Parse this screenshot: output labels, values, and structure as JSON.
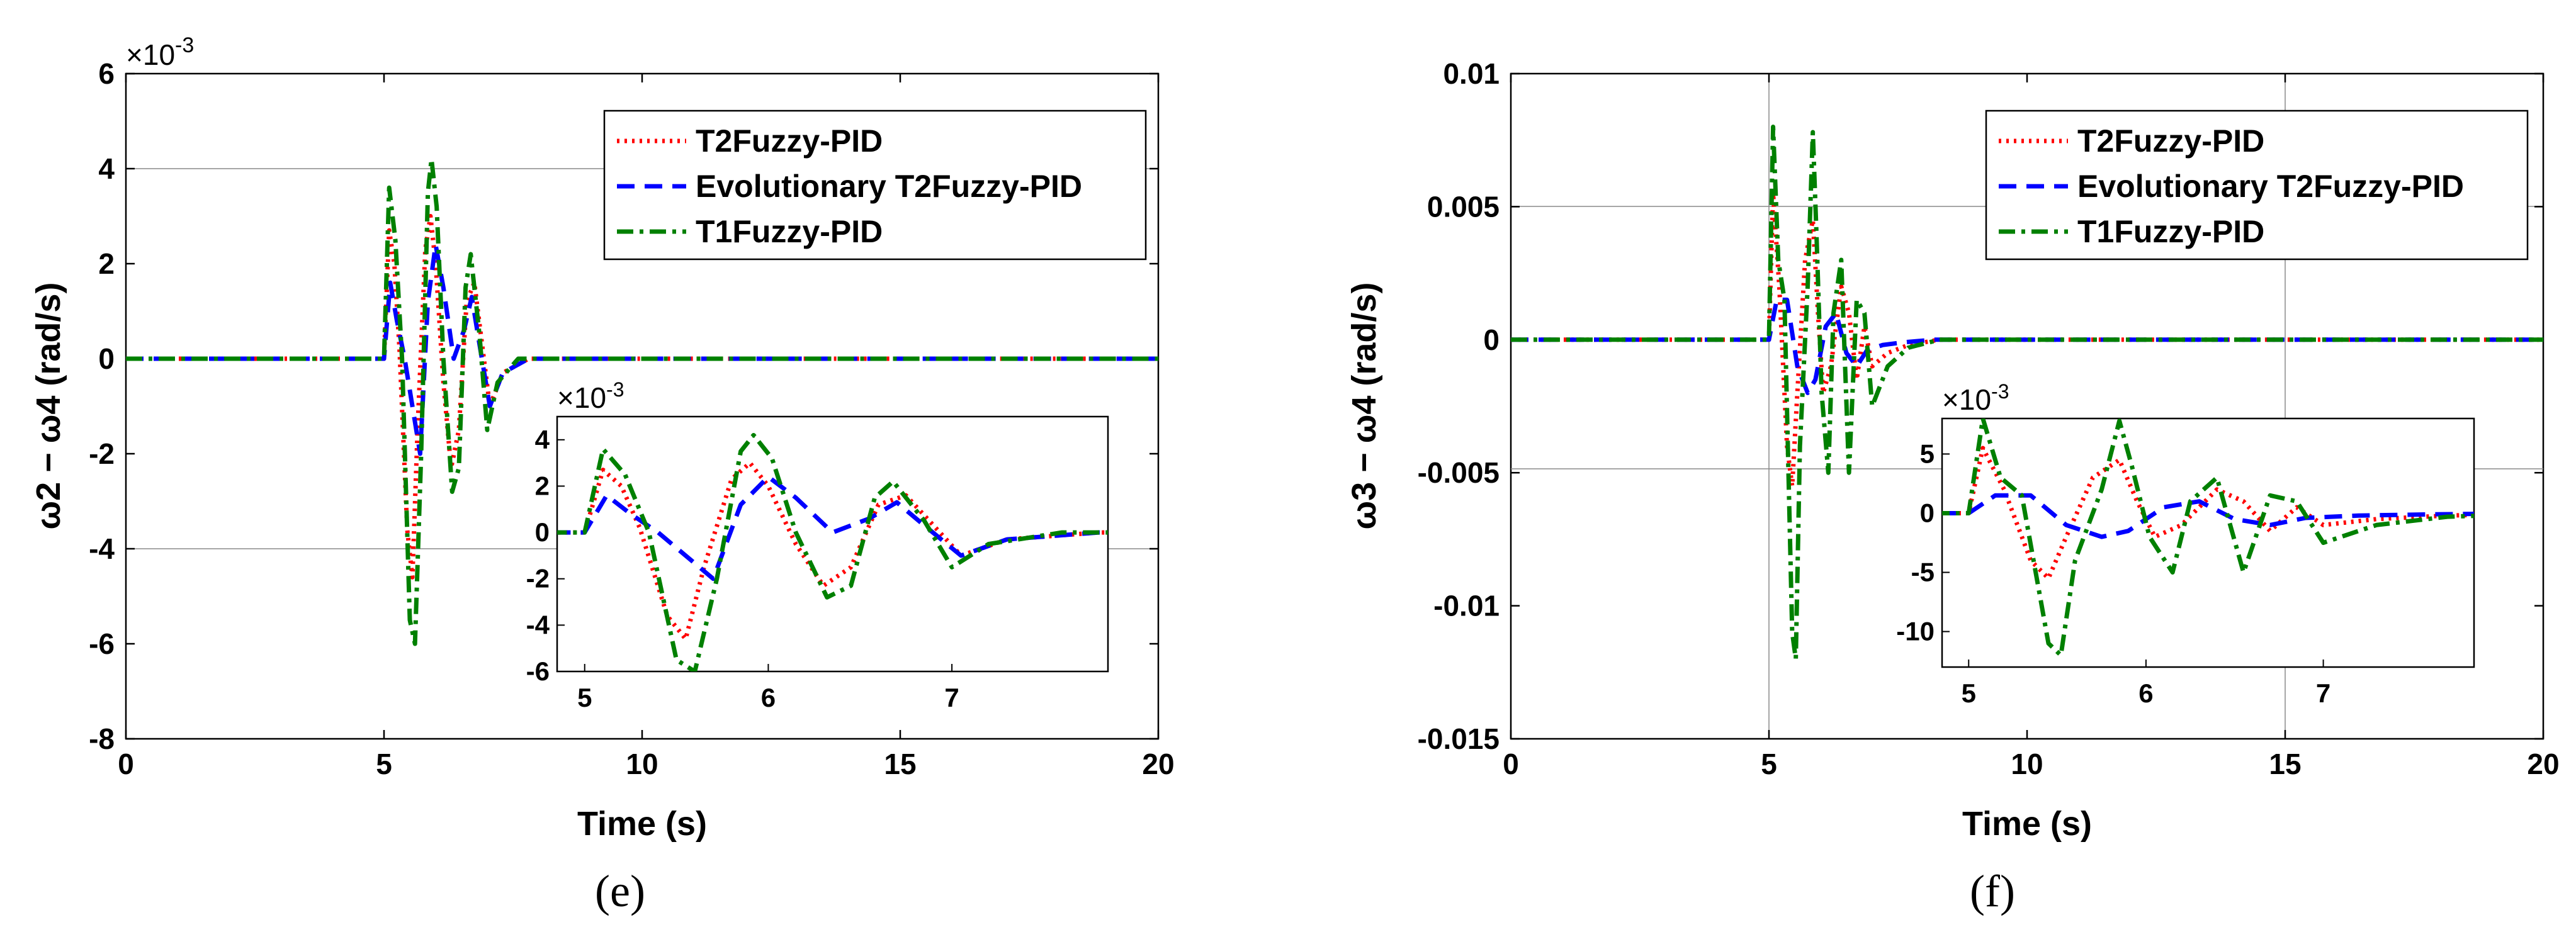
{
  "chart_data": [
    {
      "type": "line",
      "caption": "(e)",
      "xlabel": "Time (s)",
      "ylabel": "ω2 − ω4 (rad/s)",
      "y_multiplier": "×10",
      "y_multiplier_exp": "-3",
      "xlim": [
        0,
        20
      ],
      "ylim": [
        -8,
        6
      ],
      "xticks": [
        0,
        5,
        10,
        15,
        20
      ],
      "yticks": [
        -8,
        -6,
        -4,
        -2,
        0,
        2,
        4,
        6
      ],
      "xtick_labels": [
        "0",
        "5",
        "10",
        "15",
        "20"
      ],
      "ytick_labels": [
        "-8",
        "-6",
        "-4",
        "-2",
        "0",
        "2",
        "4",
        "6"
      ],
      "grid": "partial",
      "legend_position": "top-right",
      "series": [
        {
          "name": "T2Fuzzy-PID",
          "color": "#ff0000",
          "style": "dotted",
          "x": [
            0,
            5.0,
            5.1,
            5.2,
            5.3,
            5.45,
            5.55,
            5.65,
            5.8,
            5.9,
            6.0,
            6.15,
            6.3,
            6.45,
            6.6,
            6.75,
            6.9,
            7.05,
            7.3,
            7.8,
            20
          ],
          "y": [
            0,
            0,
            2.7,
            2.0,
            0.2,
            -3.6,
            -4.6,
            -1.5,
            2.3,
            3.0,
            2.0,
            -0.5,
            -2.3,
            -1.5,
            1.2,
            1.6,
            0.3,
            -1.0,
            -0.3,
            0.0,
            0
          ]
        },
        {
          "name": "Evolutionary T2Fuzzy-PID",
          "color": "#0000ff",
          "style": "dashed",
          "x": [
            0,
            5.0,
            5.12,
            5.25,
            5.4,
            5.55,
            5.7,
            5.85,
            6.0,
            6.15,
            6.35,
            6.55,
            6.7,
            6.85,
            7.05,
            7.3,
            7.8,
            20
          ],
          "y": [
            0,
            0,
            1.6,
            0.8,
            0.0,
            -1.0,
            -2.0,
            1.2,
            2.4,
            1.5,
            0.0,
            0.6,
            1.3,
            0.3,
            -1.0,
            -0.3,
            0.0,
            0
          ]
        },
        {
          "name": "T1Fuzzy-PID",
          "color": "#008000",
          "style": "dashdot",
          "x": [
            0,
            5.0,
            5.1,
            5.22,
            5.35,
            5.5,
            5.6,
            5.72,
            5.85,
            5.92,
            6.02,
            6.15,
            6.32,
            6.45,
            6.58,
            6.68,
            6.85,
            7.0,
            7.2,
            7.6,
            20
          ],
          "y": [
            0,
            0,
            3.6,
            2.5,
            0.0,
            -5.5,
            -6.0,
            -2.0,
            3.5,
            4.2,
            3.2,
            0.0,
            -2.8,
            -2.3,
            1.5,
            2.2,
            0.5,
            -1.5,
            -0.5,
            0.0,
            0
          ]
        }
      ],
      "inset": {
        "xlim": [
          4.85,
          7.85
        ],
        "ylim": [
          -6,
          5
        ],
        "xticks": [
          5,
          6,
          7
        ],
        "yticks": [
          -6,
          -4,
          -2,
          0,
          2,
          4
        ],
        "xtick_labels": [
          "5",
          "6",
          "7"
        ],
        "ytick_labels": [
          "-6",
          "-4",
          "-2",
          "0",
          "2",
          "4"
        ],
        "y_multiplier": "×10",
        "y_multiplier_exp": "-3"
      }
    },
    {
      "type": "line",
      "caption": "(f)",
      "xlabel": "Time (s)",
      "ylabel": "ω3 − ω4 (rad/s)",
      "xlim": [
        0,
        20
      ],
      "ylim": [
        -0.015,
        0.01
      ],
      "xticks": [
        0,
        5,
        10,
        15,
        20
      ],
      "yticks": [
        -0.015,
        -0.01,
        -0.005,
        0,
        0.005,
        0.01
      ],
      "xtick_labels": [
        "0",
        "5",
        "10",
        "15",
        "20"
      ],
      "ytick_labels": [
        "-0.015",
        "-0.01",
        "-0.005",
        "0",
        "0.005",
        "0.01"
      ],
      "grid": "partial",
      "legend_position": "top-right",
      "series": [
        {
          "name": "T2Fuzzy-PID",
          "color": "#ff0000",
          "style": "dotted",
          "x": [
            0,
            5.0,
            5.08,
            5.2,
            5.35,
            5.45,
            5.55,
            5.7,
            5.85,
            5.95,
            6.05,
            6.2,
            6.4,
            6.55,
            6.7,
            6.85,
            7.0,
            7.3,
            7.7,
            8.3,
            20
          ],
          "y": [
            0,
            0,
            0.0055,
            0.002,
            -0.004,
            -0.0055,
            -0.002,
            0.003,
            0.0045,
            0.001,
            -0.002,
            -0.001,
            0.002,
            0.001,
            -0.0015,
            0.0005,
            -0.001,
            -0.0005,
            -0.0002,
            0,
            0
          ]
        },
        {
          "name": "Evolutionary T2Fuzzy-PID",
          "color": "#0000ff",
          "style": "dashed",
          "x": [
            0,
            5.0,
            5.15,
            5.35,
            5.55,
            5.75,
            5.9,
            6.1,
            6.3,
            6.5,
            6.7,
            6.9,
            7.2,
            7.6,
            8.2,
            20
          ],
          "y": [
            0,
            0,
            0.0015,
            0.0015,
            -0.001,
            -0.002,
            -0.0015,
            0.0005,
            0.001,
            -0.0005,
            -0.001,
            -0.0004,
            -0.0002,
            -0.0001,
            0,
            0
          ]
        },
        {
          "name": "T1Fuzzy-PID",
          "color": "#008000",
          "style": "dashdot",
          "x": [
            0,
            5.0,
            5.08,
            5.18,
            5.3,
            5.45,
            5.52,
            5.6,
            5.75,
            5.85,
            5.92,
            6.02,
            6.15,
            6.25,
            6.4,
            6.55,
            6.7,
            6.85,
            7.0,
            7.3,
            7.7,
            8.3,
            20
          ],
          "y": [
            0,
            0,
            0.008,
            0.003,
            0.0015,
            -0.011,
            -0.012,
            -0.004,
            0.002,
            0.0078,
            0.004,
            -0.002,
            -0.005,
            0.001,
            0.003,
            -0.005,
            0.0015,
            0.001,
            -0.0025,
            -0.001,
            -0.0003,
            0,
            0
          ]
        }
      ],
      "inset": {
        "xlim": [
          4.85,
          7.85
        ],
        "ylim": [
          -13,
          8
        ],
        "xticks": [
          5,
          6,
          7
        ],
        "yticks": [
          -10,
          -5,
          0,
          5
        ],
        "xtick_labels": [
          "5",
          "6",
          "7"
        ],
        "ytick_labels": [
          "-10",
          "-5",
          "0",
          "5"
        ],
        "y_multiplier": "×10",
        "y_multiplier_exp": "-3"
      }
    }
  ]
}
